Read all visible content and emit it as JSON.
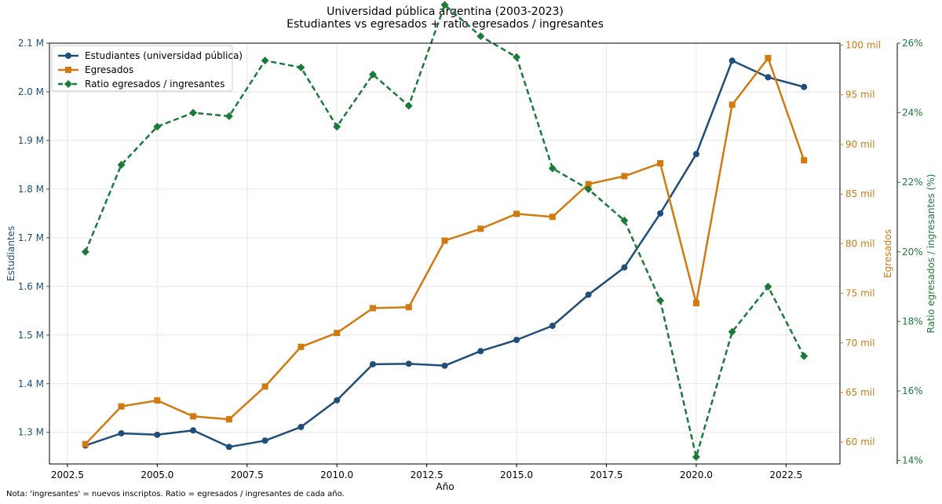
{
  "chart_data": {
    "type": "line",
    "title": "Universidad pública argentina (2003-2023)",
    "subtitle": "Estudiantes vs egresados + ratio egresados / ingresantes",
    "xlabel": "Año",
    "ylabel_left": "Estudiantes",
    "ylabel_right": "Egresados",
    "ylabel_right2": "Ratio egresados / ingresantes (%)",
    "note": "Nota: 'ingresantes' = nuevos inscriptos. Ratio = egresados / ingresantes de cada año.",
    "x": [
      2003,
      2004,
      2005,
      2006,
      2007,
      2008,
      2009,
      2010,
      2011,
      2012,
      2013,
      2014,
      2015,
      2016,
      2017,
      2018,
      2019,
      2020,
      2021,
      2022,
      2023
    ],
    "xlim": [
      2002.0,
      2024.0
    ],
    "x_ticks": [
      2002.5,
      2005.0,
      2007.5,
      2010.0,
      2012.5,
      2015.0,
      2017.5,
      2020.0,
      2022.5
    ],
    "x_tick_labels": [
      "2002.5",
      "2005.0",
      "2007.5",
      "2010.0",
      "2012.5",
      "2015.0",
      "2017.5",
      "2020.0",
      "2022.5"
    ],
    "grid": true,
    "legend_position": "top-left",
    "series": [
      {
        "name": "Estudiantes (universidad pública)",
        "axis": "left",
        "color": "#1f4e79",
        "marker": "circle",
        "style": "solid",
        "values": [
          1.273,
          1.298,
          1.295,
          1.304,
          1.27,
          1.283,
          1.311,
          1.366,
          1.44,
          1.441,
          1.437,
          1.467,
          1.49,
          1.519,
          1.583,
          1.639,
          1.75,
          1.872,
          2.064,
          2.03,
          2.01
        ]
      },
      {
        "name": "Egresados",
        "axis": "right",
        "color": "#d07a10",
        "marker": "square",
        "style": "solid",
        "values": [
          59.8,
          63.6,
          64.2,
          62.6,
          62.3,
          65.6,
          69.6,
          71.0,
          73.5,
          73.6,
          80.3,
          81.5,
          83.0,
          82.7,
          86.0,
          86.8,
          88.1,
          74.0,
          94.0,
          98.7,
          88.4
        ]
      },
      {
        "name": "Ratio egresados / ingresantes",
        "axis": "right2",
        "color": "#1b7a3a",
        "marker": "diamond",
        "style": "dashed",
        "values": [
          20.0,
          22.5,
          23.6,
          24.0,
          23.9,
          25.5,
          25.3,
          23.6,
          25.1,
          24.2,
          27.1,
          26.2,
          25.6,
          22.4,
          21.8,
          20.9,
          18.6,
          14.1,
          17.7,
          19.0,
          17.0
        ]
      }
    ],
    "axes": {
      "left": {
        "ylim": [
          1.235,
          2.1
        ],
        "ticks": [
          1.3,
          1.4,
          1.5,
          1.6,
          1.7,
          1.8,
          1.9,
          2.0,
          2.1
        ],
        "tick_labels": [
          "1.3 M",
          "1.4 M",
          "1.5 M",
          "1.6 M",
          "1.7 M",
          "1.8 M",
          "1.9 M",
          "2.0 M",
          "2.1 M"
        ],
        "color": "#1f4e79"
      },
      "right": {
        "ylim": [
          57.8,
          100.2
        ],
        "ticks": [
          60,
          65,
          70,
          75,
          80,
          85,
          90,
          95,
          100
        ],
        "tick_labels": [
          "60 mil",
          "65 mil",
          "70 mil",
          "75 mil",
          "80 mil",
          "85 mil",
          "90 mil",
          "95 mil",
          "100 mil"
        ],
        "color": "#d07a10"
      },
      "right2": {
        "ylim": [
          13.9,
          26.0
        ],
        "ticks": [
          14,
          16,
          18,
          20,
          22,
          24,
          26
        ],
        "tick_labels": [
          "14%",
          "16%",
          "18%",
          "20%",
          "22%",
          "24%",
          "26%"
        ],
        "color": "#1b7a3a"
      }
    }
  }
}
